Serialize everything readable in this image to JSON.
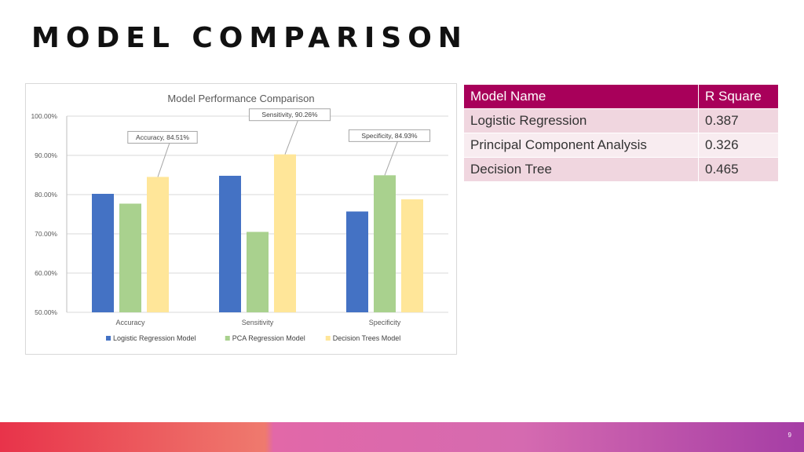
{
  "slide": {
    "title": "MODEL COMPARISON",
    "page_number": "9"
  },
  "colors": {
    "logistic": "#4472c4",
    "pca": "#a9d18e",
    "trees": "#ffe699",
    "table_header": "#a8005a",
    "footer_gradient": [
      "#e8334a",
      "#ef7a6e",
      "#e268a8",
      "#a53da5"
    ]
  },
  "chart_data": {
    "type": "bar",
    "title": "Model Performance Comparison",
    "xlabel": "",
    "ylabel": "",
    "categories": [
      "Accuracy",
      "Sensitivity",
      "Specificity"
    ],
    "series": [
      {
        "name": "Logistic Regression Model",
        "values": [
          80.2,
          84.8,
          75.7
        ]
      },
      {
        "name": "PCA Regression Model",
        "values": [
          77.7,
          70.5,
          84.93
        ]
      },
      {
        "name": "Decision Trees Model",
        "values": [
          84.51,
          90.26,
          78.8
        ]
      }
    ],
    "ylim": [
      50,
      100
    ],
    "yticks": [
      "50.00%",
      "60.00%",
      "70.00%",
      "80.00%",
      "90.00%",
      "100.00%"
    ],
    "grid": true,
    "legend_position": "bottom",
    "annotations": [
      {
        "text": "Accuracy, 84.51%",
        "category": "Accuracy",
        "series": "Decision Trees Model"
      },
      {
        "text": "Sensitivity, 90.26%",
        "category": "Sensitivity",
        "series": "Decision Trees Model"
      },
      {
        "text": "Specificity, 84.93%",
        "category": "Specificity",
        "series": "PCA Regression Model"
      }
    ]
  },
  "table": {
    "headers": [
      "Model Name",
      "R Square"
    ],
    "rows": [
      [
        "Logistic Regression",
        "0.387"
      ],
      [
        "Principal Component Analysis",
        "0.326"
      ],
      [
        "Decision Tree",
        "0.465"
      ]
    ]
  }
}
